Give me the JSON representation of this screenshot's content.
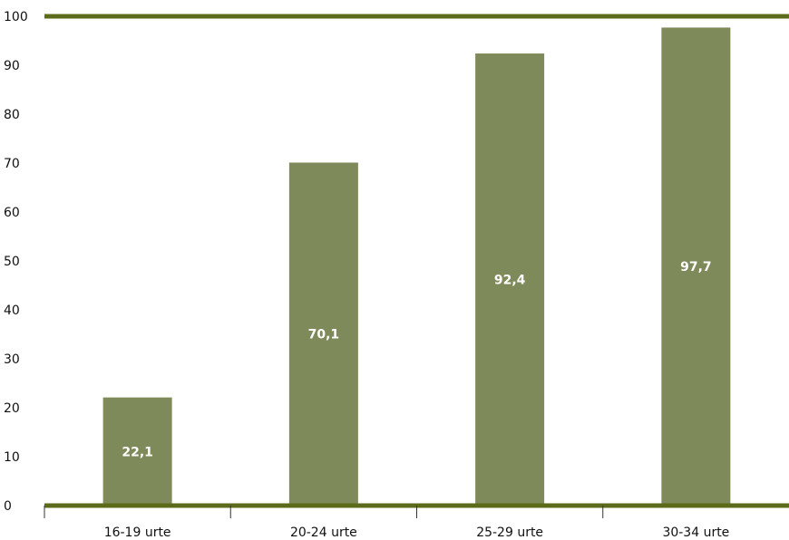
{
  "chart_data": {
    "type": "bar",
    "categories": [
      "16-19 urte",
      "20-24 urte",
      "25-29 urte",
      "30-34 urte"
    ],
    "values": [
      22.1,
      70.1,
      92.4,
      97.7
    ],
    "value_labels": [
      "22,1",
      "70,1",
      "92,4",
      "97,7"
    ],
    "ylim": [
      0,
      100
    ],
    "yticks": [
      "0",
      "10",
      "20",
      "30",
      "40",
      "50",
      "60",
      "70",
      "80",
      "90",
      "100"
    ],
    "grid": false,
    "legend": "none",
    "colors": {
      "bar": "#7f8a5a",
      "axis_line": "#5b6b1a",
      "data_label": "#ffffff"
    }
  }
}
